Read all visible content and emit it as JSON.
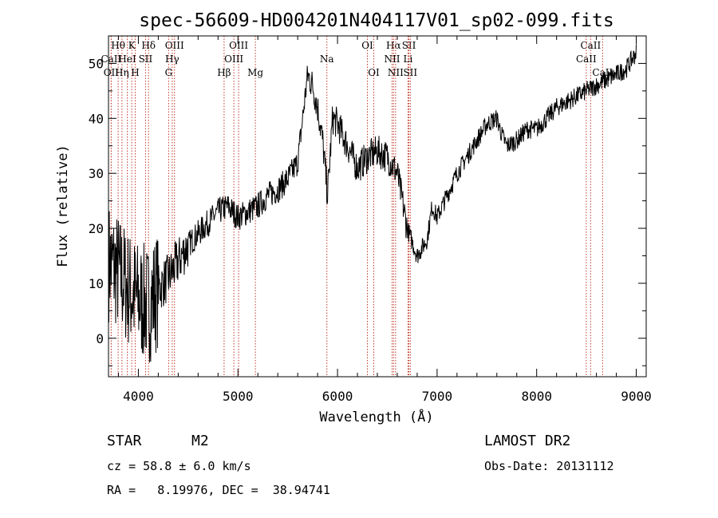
{
  "chart_data": {
    "type": "line",
    "title": "spec-56609-HD004201N404117V01_sp02-099.fits",
    "xlabel": "Wavelength (Å)",
    "ylabel": "Flux (relative)",
    "xlim": [
      3700,
      9100
    ],
    "ylim": [
      -7,
      55
    ],
    "xticks": [
      4000,
      5000,
      6000,
      7000,
      8000,
      9000
    ],
    "yticks": [
      0,
      10,
      20,
      30,
      40,
      50
    ],
    "spectrum": {
      "x": [
        3700,
        3800,
        3900,
        4000,
        4100,
        4200,
        4300,
        4400,
        4500,
        4600,
        4700,
        4800,
        4900,
        5000,
        5100,
        5200,
        5300,
        5400,
        5500,
        5600,
        5700,
        5750,
        5800,
        5850,
        5900,
        5950,
        6000,
        6100,
        6200,
        6300,
        6400,
        6500,
        6600,
        6700,
        6800,
        6900,
        6950,
        7000,
        7100,
        7200,
        7300,
        7400,
        7500,
        7600,
        7650,
        7700,
        7800,
        7900,
        8000,
        8100,
        8200,
        8300,
        8400,
        8500,
        8600,
        8700,
        8800,
        8900,
        9000
      ],
      "y": [
        14,
        12,
        9,
        7,
        6,
        9,
        11,
        14,
        17,
        19,
        21,
        23,
        24,
        22,
        23,
        24,
        26,
        27,
        29,
        32,
        48,
        46,
        42,
        36,
        26,
        40,
        39,
        35,
        31,
        33,
        34,
        33,
        30,
        20,
        15,
        18,
        24,
        22,
        26,
        30,
        33,
        36,
        39,
        40,
        37,
        35,
        36,
        38,
        38,
        40,
        42,
        43,
        44,
        45,
        46,
        47,
        48,
        49,
        52
      ]
    },
    "line_markers": [
      {
        "label": "Hθ",
        "x": 3797,
        "row": 0
      },
      {
        "label": "K",
        "x": 3934,
        "row": 0
      },
      {
        "label": "Hδ",
        "x": 4102,
        "row": 0
      },
      {
        "label": "OIII",
        "x": 4363,
        "row": 0
      },
      {
        "label": "OIII",
        "x": 5007,
        "row": 0
      },
      {
        "label": "OI",
        "x": 6300,
        "row": 0
      },
      {
        "label": "Hα",
        "x": 6563,
        "row": 0
      },
      {
        "label": "SII",
        "x": 6717,
        "row": 0
      },
      {
        "label": "CaII",
        "x": 8542,
        "row": 0
      },
      {
        "label": "CaII",
        "x": 3727,
        "row": 1
      },
      {
        "label": "HeI",
        "x": 3889,
        "row": 1
      },
      {
        "label": "SII",
        "x": 4072,
        "row": 1
      },
      {
        "label": "Hγ",
        "x": 4340,
        "row": 1
      },
      {
        "label": "OIII",
        "x": 4959,
        "row": 1
      },
      {
        "label": "Na",
        "x": 5893,
        "row": 1
      },
      {
        "label": "NII",
        "x": 6548,
        "row": 1
      },
      {
        "label": "Li",
        "x": 6708,
        "row": 1
      },
      {
        "label": "CaII",
        "x": 8498,
        "row": 1
      },
      {
        "label": "OII",
        "x": 3727,
        "row": 2
      },
      {
        "label": "Hη",
        "x": 3835,
        "row": 2
      },
      {
        "label": "H",
        "x": 3968,
        "row": 2
      },
      {
        "label": "G",
        "x": 4304,
        "row": 2
      },
      {
        "label": "Hβ",
        "x": 4861,
        "row": 2
      },
      {
        "label": "Mg",
        "x": 5175,
        "row": 2
      },
      {
        "label": "OI",
        "x": 6364,
        "row": 2
      },
      {
        "label": "NII",
        "x": 6583,
        "row": 2
      },
      {
        "label": "SII",
        "x": 6731,
        "row": 2
      },
      {
        "label": "CaII",
        "x": 8662,
        "row": 2
      }
    ]
  },
  "info": {
    "object_class": "STAR",
    "subclass": "M2",
    "survey": "LAMOST DR2",
    "redshift": "cz = 58.8 ± 6.0 km/s",
    "obs_date": "Obs-Date: 20131112",
    "coords": "RA =   8.19976, DEC =  38.94741"
  },
  "colors": {
    "spectrum": "#000000",
    "marker_lines": "#c0392b",
    "axes": "#000000"
  }
}
